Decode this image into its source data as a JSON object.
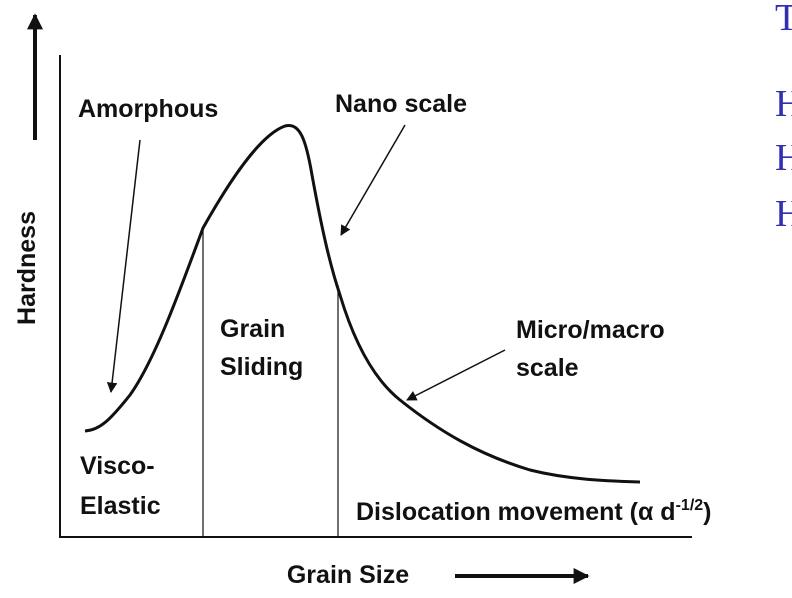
{
  "axes": {
    "y_label": "Hardness",
    "x_label": "Grain Size"
  },
  "labels": {
    "amorphous": "Amorphous",
    "nano_scale": "Nano scale",
    "micro_macro": [
      "Micro/macro",
      "scale"
    ],
    "grain_sliding": [
      "Grain",
      "Sliding"
    ],
    "visco_elastic": [
      "Visco-",
      "Elastic"
    ],
    "dislocation": {
      "text": "Dislocation movement (α d",
      "exponent": "-1/2",
      "close": ")"
    }
  },
  "side_text": [
    "T",
    "H",
    "H",
    "H"
  ]
}
